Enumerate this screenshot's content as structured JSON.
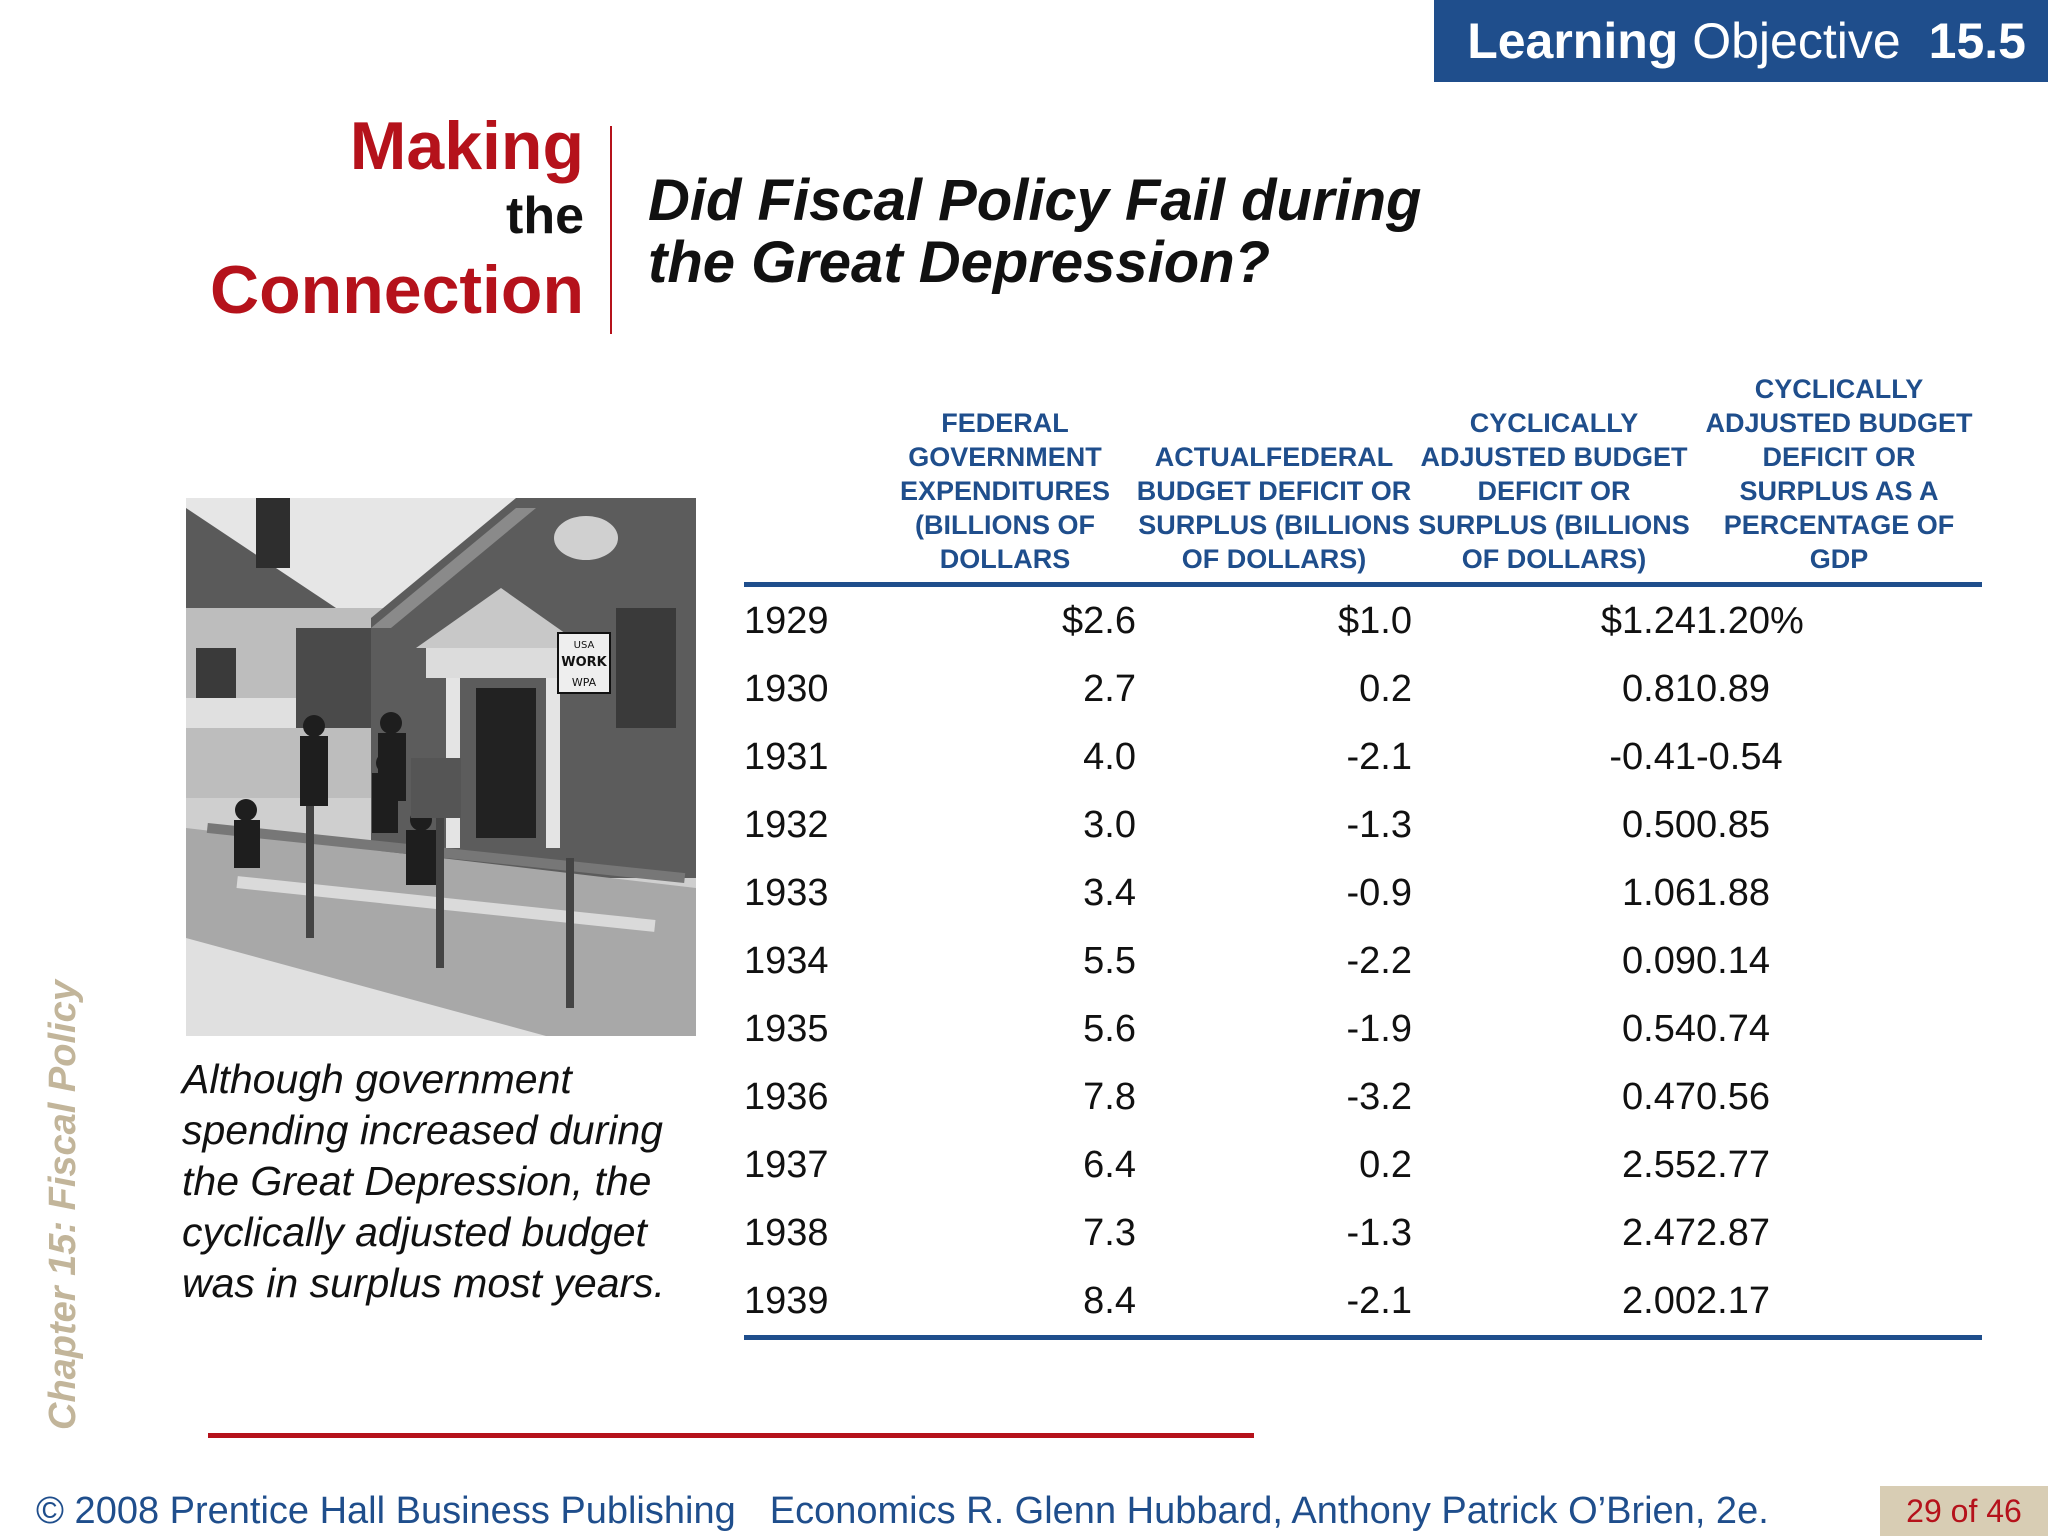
{
  "banner": {
    "learning": "Learning",
    "objective": "Objective",
    "number": "15.5"
  },
  "mtc": {
    "making": "Making",
    "the": "the",
    "connection": "Connection"
  },
  "title": {
    "line1": "Did Fiscal Policy Fail during",
    "line2": "the Great Depression?"
  },
  "caption": {
    "lines": [
      "Although government",
      "spending increased during",
      "the Great Depression, the",
      "cyclically adjusted budget",
      "was in surplus most years."
    ]
  },
  "table": {
    "headers": [
      "",
      "FEDERAL GOVERNMENT EXPENDITURES (BILLIONS OF DOLLARS",
      "ACTUALFEDERAL BUDGET DEFICIT OR SURPLUS (BILLIONS OF DOLLARS)",
      "CYCLICALLY ADJUSTED BUDGET DEFICIT OR SURPLUS (BILLIONS OF DOLLARS)",
      "CYCLICALLY ADJUSTED BUDGET DEFICIT OR SURPLUS AS A PERCENTAGE OF GDP"
    ],
    "rows": [
      [
        "1929",
        "$2.6",
        "$1.0",
        "$1.24",
        "1.20%"
      ],
      [
        "1930",
        "2.7",
        "0.2",
        "0.81",
        "0.89"
      ],
      [
        "1931",
        "4.0",
        "-2.1",
        "-0.41",
        "-0.54"
      ],
      [
        "1932",
        "3.0",
        "-1.3",
        "0.50",
        "0.85"
      ],
      [
        "1933",
        "3.4",
        "-0.9",
        "1.06",
        "1.88"
      ],
      [
        "1934",
        "5.5",
        "-2.2",
        "0.09",
        "0.14"
      ],
      [
        "1935",
        "5.6",
        "-1.9",
        "0.54",
        "0.74"
      ],
      [
        "1936",
        "7.8",
        "-3.2",
        "0.47",
        "0.56"
      ],
      [
        "1937",
        "6.4",
        "0.2",
        "2.55",
        "2.77"
      ],
      [
        "1938",
        "7.3",
        "-1.3",
        "2.47",
        "2.87"
      ],
      [
        "1939",
        "8.4",
        "-2.1",
        "2.00",
        "2.17"
      ]
    ]
  },
  "photo_sign": {
    "line1": "USA",
    "line2": "WORK",
    "line3": "WPA"
  },
  "chapter_label": "Chapter 15:  Fiscal Policy",
  "footer": {
    "publisher": "© 2008 Prentice Hall Business Publishing",
    "book": "Economics  R. Glenn Hubbard, Anthony Patrick O’Brien, 2e."
  },
  "page": "29 of 46",
  "colors": {
    "accent_blue": "#1f4e8c",
    "accent_red": "#b5121b",
    "tan": "#d8cdb4"
  }
}
